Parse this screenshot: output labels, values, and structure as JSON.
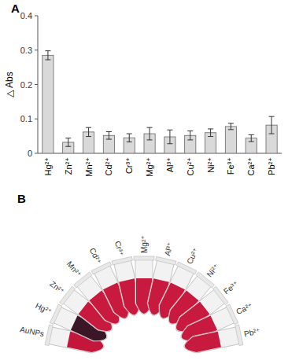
{
  "chart_data": {
    "type": "bar",
    "title": "A",
    "y_label": "△ Abs",
    "categories": [
      "Hg²⁺",
      "Zn²⁺",
      "Mn²⁺",
      "Cd²⁺",
      "Cr³⁺",
      "Mg²⁺",
      "Al³⁺",
      "Cu²⁺",
      "Ni²⁺",
      "Fe³⁺",
      "Ca²⁺",
      "Pb²⁺"
    ],
    "values": [
      0.285,
      0.032,
      0.062,
      0.052,
      0.045,
      0.057,
      0.048,
      0.052,
      0.06,
      0.078,
      0.044,
      0.082
    ],
    "errors": [
      0.013,
      0.012,
      0.013,
      0.011,
      0.012,
      0.018,
      0.02,
      0.013,
      0.011,
      0.009,
      0.01,
      0.025
    ],
    "color": "#d9d9d9",
    "ylim": [
      0,
      0.4
    ],
    "yticks": [
      0,
      0.1,
      0.2,
      0.3,
      0.4
    ],
    "grid": false
  },
  "photo": {
    "label": "B",
    "tubes": [
      "AuNPs",
      "Hg²⁺",
      "Zn²⁺",
      "Mn²⁺",
      "Cd²⁺",
      "Cr³⁺",
      "Mg²⁺",
      "Al³⁺",
      "Cu²⁺",
      "Ni²⁺",
      "Fe³⁺",
      "Ca²⁺",
      "Pb²⁺"
    ],
    "colors": [
      "#c4163a",
      "#3b1626",
      "#c8193e",
      "#c8193e",
      "#c8193e",
      "#c8193e",
      "#c8193e",
      "#c8193e",
      "#c8193e",
      "#c8193e",
      "#c8193e",
      "#c8193e",
      "#c8193e"
    ]
  }
}
